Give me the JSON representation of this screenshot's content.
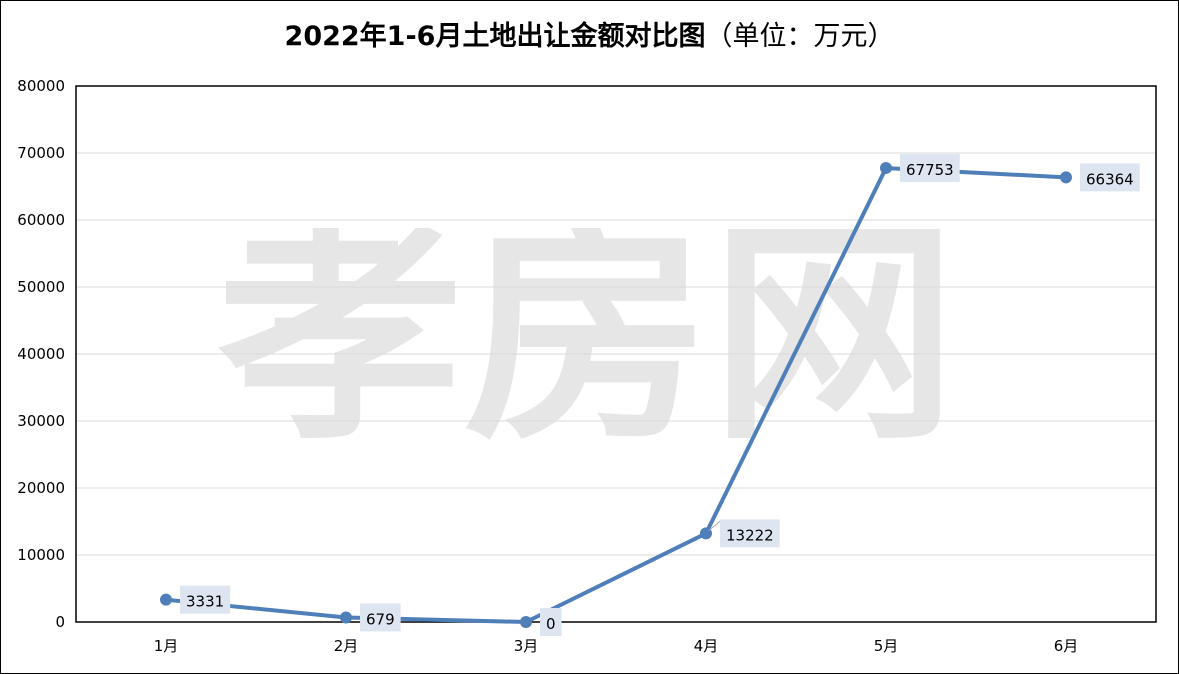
{
  "title": "2022年1-6月土地出让金额对比图",
  "title_unit": "（单位：万元）",
  "watermark_text": "孝房网",
  "colors": {
    "line": "#4f7fb8",
    "label_bg": "#dde5f1",
    "grid": "#d9d9d9",
    "watermark": "#e6e6e6"
  },
  "chart_data": {
    "type": "line",
    "title": "2022年1-6月土地出让金额对比图（单位：万元）",
    "categories": [
      "1月",
      "2月",
      "3月",
      "4月",
      "5月",
      "6月"
    ],
    "values": [
      3331,
      679,
      0,
      13222,
      67753,
      66364
    ],
    "data_labels": [
      "3331",
      "679",
      "0",
      "13222",
      "67753",
      "66364"
    ],
    "ylim": [
      0,
      80000
    ],
    "yticks": [
      0,
      10000,
      20000,
      30000,
      40000,
      50000,
      60000,
      70000,
      80000
    ],
    "ytick_labels": [
      "0",
      "10000",
      "20000",
      "30000",
      "40000",
      "50000",
      "60000",
      "70000",
      "80000"
    ],
    "grid": true,
    "legend": "none"
  }
}
